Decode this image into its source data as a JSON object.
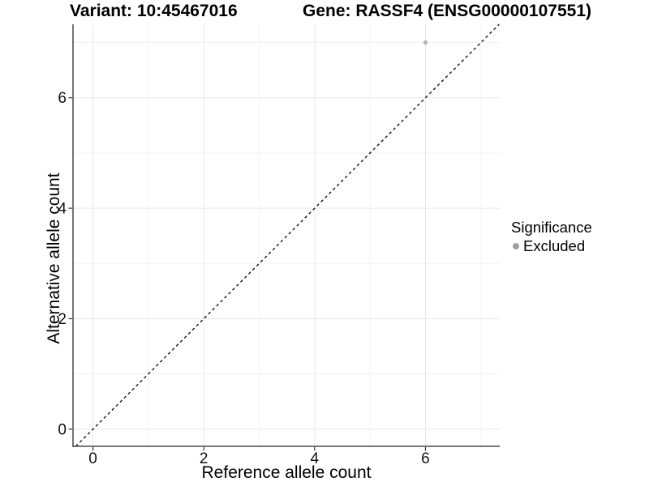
{
  "chart_data": {
    "type": "scatter",
    "titles": {
      "left": "Variant: 10:45467016",
      "right": "Gene: RASSF4 (ENSG00000107551)"
    },
    "xlabel": "Reference allele count",
    "ylabel": "Alternative allele count",
    "xlim": [
      -0.36,
      7.34
    ],
    "ylim": [
      -0.31,
      7.33
    ],
    "x_ticks": [
      0,
      2,
      4,
      6
    ],
    "y_ticks": [
      0,
      2,
      4,
      6
    ],
    "x_minor_gridlines": [
      1,
      3,
      5,
      7
    ],
    "y_minor_gridlines": [
      1,
      3,
      5,
      7
    ],
    "grid": "major+minor",
    "identity_line": {
      "style": "dashed",
      "from": -0.31,
      "to": 7.33
    },
    "points": [
      {
        "x": 6,
        "y": 7,
        "series": "Excluded",
        "color": "#b3b3b3",
        "radius": 2.6
      }
    ],
    "legend": {
      "title": "Significance",
      "position": "right",
      "items": [
        {
          "label": "Excluded",
          "color": "#a0a0a0"
        }
      ]
    },
    "colors": {
      "background": "#ffffff",
      "grid_major": "#e8e8e8",
      "grid_minor": "#f3f3f3",
      "axis_line": "#474747",
      "tick_mark": "#333333",
      "tick_text": "#111111",
      "title_text": "#000000",
      "dashed_line": "#000000"
    }
  }
}
